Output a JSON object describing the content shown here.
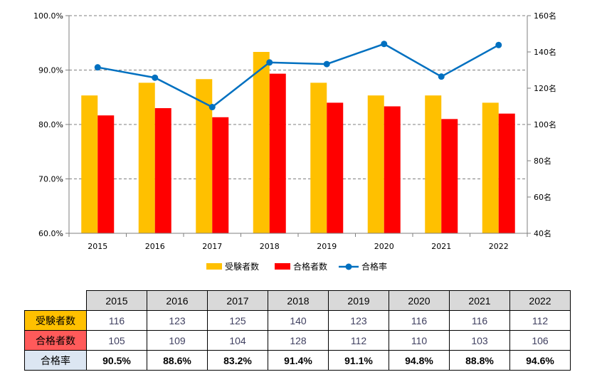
{
  "chart_data": {
    "type": "bar+line",
    "categories": [
      "2015",
      "2016",
      "2017",
      "2018",
      "2019",
      "2020",
      "2021",
      "2022"
    ],
    "series": [
      {
        "name": "受験者数",
        "type": "bar",
        "axis": "right",
        "color": "#ffc000",
        "values": [
          116,
          123,
          125,
          140,
          123,
          116,
          116,
          112
        ]
      },
      {
        "name": "合格者数",
        "type": "bar",
        "axis": "right",
        "color": "#ff0000",
        "values": [
          105,
          109,
          104,
          128,
          112,
          110,
          103,
          106
        ]
      },
      {
        "name": "合格率",
        "type": "line",
        "axis": "left",
        "color": "#0070c0",
        "values": [
          90.5,
          88.6,
          83.2,
          91.4,
          91.1,
          94.8,
          88.8,
          94.6
        ]
      }
    ],
    "y_left": {
      "min": 60,
      "max": 100,
      "ticks": [
        "60.0%",
        "70.0%",
        "80.0%",
        "90.0%",
        "100.0%"
      ]
    },
    "y_right": {
      "min": 40,
      "max": 160,
      "ticks": [
        "40名",
        "60名",
        "80名",
        "100名",
        "120名",
        "140名",
        "160名"
      ]
    },
    "grid": true,
    "legend": "bottom"
  },
  "table": {
    "headers": [
      "2015",
      "2016",
      "2017",
      "2018",
      "2019",
      "2020",
      "2021",
      "2022"
    ],
    "rows": [
      {
        "label": "受験者数",
        "values": [
          "116",
          "123",
          "125",
          "140",
          "123",
          "116",
          "116",
          "112"
        ]
      },
      {
        "label": "合格者数",
        "values": [
          "105",
          "109",
          "104",
          "128",
          "112",
          "110",
          "103",
          "106"
        ]
      },
      {
        "label": "合格率",
        "values": [
          "90.5%",
          "88.6%",
          "83.2%",
          "91.4%",
          "91.1%",
          "94.8%",
          "88.8%",
          "94.6%"
        ]
      }
    ]
  }
}
